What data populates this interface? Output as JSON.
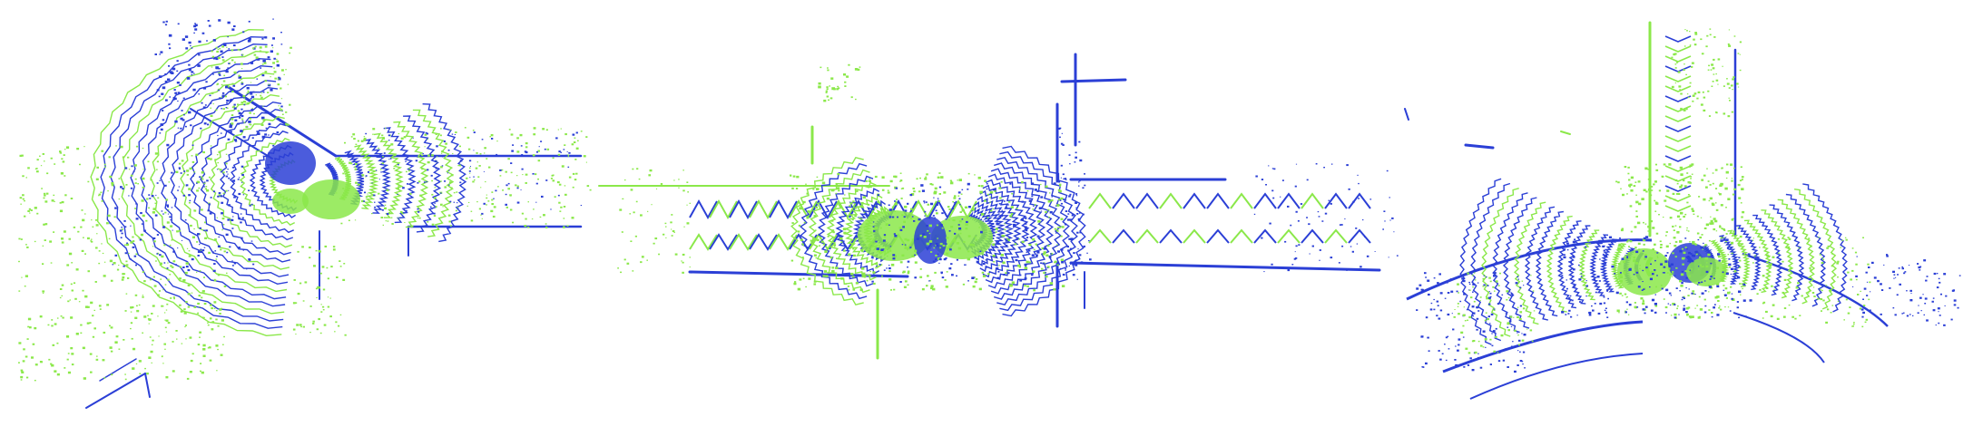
{
  "figure": {
    "panel_count": 3,
    "colors": {
      "blue": "#2b3fd6",
      "green": "#8be84a"
    }
  }
}
